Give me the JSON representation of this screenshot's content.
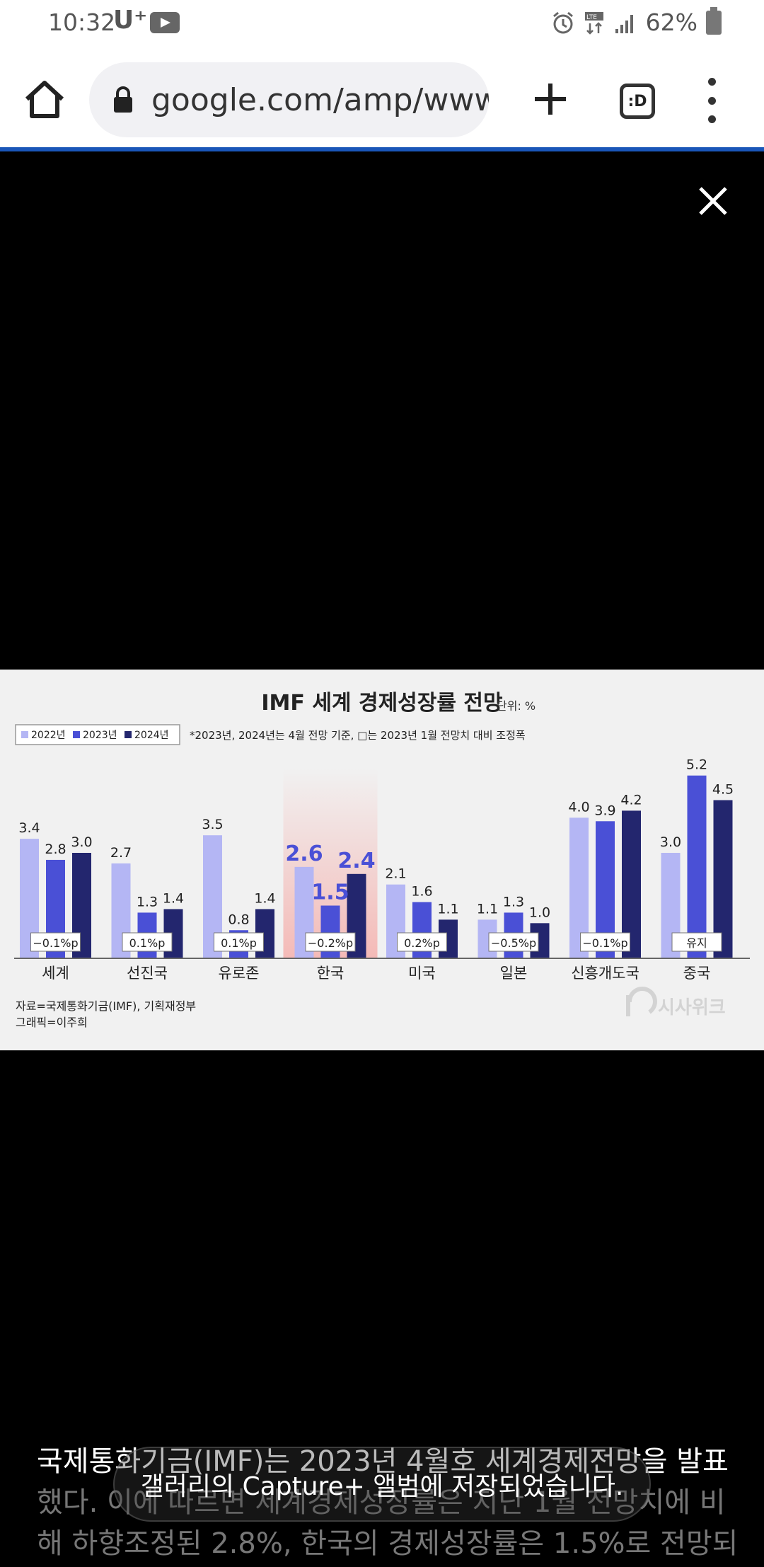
{
  "status_bar": {
    "time": "10:32",
    "carrier": "U⁺",
    "battery": "62%",
    "icons": [
      "youtube-icon",
      "alarm-icon",
      "lte-icon",
      "signal-icon",
      "battery-icon"
    ]
  },
  "browser": {
    "url": "google.com/amp/www",
    "tab_switcher_label": ":D",
    "icons": [
      "home-icon",
      "lock-icon",
      "plus-icon",
      "tab-switcher-icon",
      "more-vert-icon",
      "close-icon"
    ]
  },
  "chart_data": {
    "type": "bar",
    "title": "IMF 세계 경제성장률 전망",
    "unit_label": "단위: %",
    "note": "*2023년, 2024년는 4월 전망 기준,  □는 2023년 1월 전망치 대비 조정폭",
    "categories": [
      "세계",
      "선진국",
      "유로존",
      "한국",
      "미국",
      "일본",
      "신흥개도국",
      "중국"
    ],
    "series": [
      {
        "name": "2022년",
        "color": "#b4b6f4",
        "values": [
          3.4,
          2.7,
          3.5,
          2.6,
          2.1,
          1.1,
          4.0,
          3.0
        ]
      },
      {
        "name": "2023년",
        "color": "#4a50d6",
        "values": [
          2.8,
          1.3,
          0.8,
          1.5,
          1.6,
          1.3,
          3.9,
          5.2
        ]
      },
      {
        "name": "2024년",
        "color": "#23266e",
        "values": [
          3.0,
          1.4,
          1.4,
          2.4,
          1.1,
          1.0,
          4.2,
          4.5
        ]
      }
    ],
    "value_labels": [
      [
        "3.4",
        "2.8",
        "3.0"
      ],
      [
        "2.7",
        "1.3",
        "1.4"
      ],
      [
        "3.5",
        "0.8",
        "1.4"
      ],
      [
        "2.6",
        "1.5",
        "2.4"
      ],
      [
        "2.1",
        "1.6",
        "1.1"
      ],
      [
        "1.1",
        "1.3",
        "1.0"
      ],
      [
        "4.0",
        "3.9",
        "4.2"
      ],
      [
        "3.0",
        "5.2",
        "4.5"
      ]
    ],
    "adjustments": [
      "−0.1%p",
      "0.1%p",
      "0.1%p",
      "−0.2%p",
      "0.2%p",
      "−0.5%p",
      "−0.1%p",
      "유지"
    ],
    "highlight_category": "한국",
    "highlight_color": "#f4b7b4",
    "source": "자료=국제통화기금(IMF), 기획재정부",
    "credit": "그래픽=이주희",
    "watermark": "시사위크",
    "ylim": [
      0,
      6
    ],
    "legend_position": "top-left",
    "grid": false
  },
  "caption": {
    "lines": [
      "국제통화기금(IMF)는 2023년 4월호 세계경제전망을 발표",
      "했다. 이에 따르면 세계경제성장률은 지난 1월 전망치에 비",
      "해 하향조정된 2.8%, 한국의 경제성장률은 1.5%로 전망되"
    ]
  },
  "toast": {
    "message": "갤러리의 Capture+ 앨범에 저장되었습니다."
  }
}
